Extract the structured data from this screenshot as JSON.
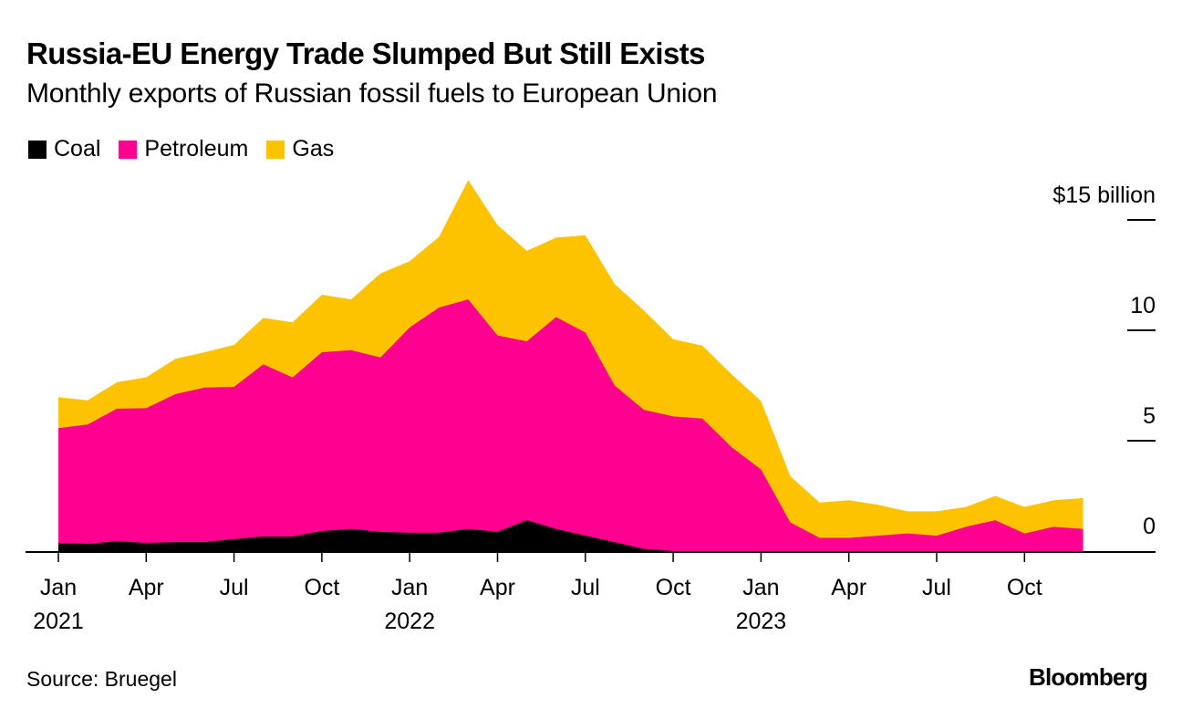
{
  "header": {
    "title": "Russia-EU Energy Trade Slumped But Still Exists",
    "subtitle": "Monthly exports of Russian fossil fuels to European Union"
  },
  "legend": [
    {
      "label": "Coal",
      "color": "#000000"
    },
    {
      "label": "Petroleum",
      "color": "#ff0090"
    },
    {
      "label": "Gas",
      "color": "#fdc300"
    }
  ],
  "footer": {
    "source": "Source: Bruegel",
    "brand": "Bloomberg"
  },
  "chart_data": {
    "type": "area",
    "stacked": true,
    "title": "Russia-EU Energy Trade Slumped But Still Exists",
    "subtitle": "Monthly exports of Russian fossil fuels to European Union",
    "xlabel": "",
    "ylabel": "$ billion",
    "ylim": [
      0,
      15
    ],
    "y_ticks": [
      {
        "value": 0,
        "label": "0"
      },
      {
        "value": 5,
        "label": "5"
      },
      {
        "value": 10,
        "label": "10"
      },
      {
        "value": 15,
        "label": "$15 billion"
      }
    ],
    "x_ticks": [
      {
        "month": 0,
        "label": "Jan",
        "year": "2021"
      },
      {
        "month": 3,
        "label": "Apr",
        "year": ""
      },
      {
        "month": 6,
        "label": "Jul",
        "year": ""
      },
      {
        "month": 9,
        "label": "Oct",
        "year": ""
      },
      {
        "month": 12,
        "label": "Jan",
        "year": "2022"
      },
      {
        "month": 15,
        "label": "Apr",
        "year": ""
      },
      {
        "month": 18,
        "label": "Jul",
        "year": ""
      },
      {
        "month": 21,
        "label": "Oct",
        "year": ""
      },
      {
        "month": 24,
        "label": "Jan",
        "year": "2023"
      },
      {
        "month": 27,
        "label": "Apr",
        "year": ""
      },
      {
        "month": 30,
        "label": "Jul",
        "year": ""
      },
      {
        "month": 33,
        "label": "Oct",
        "year": ""
      }
    ],
    "x": [
      "2021-01",
      "2021-02",
      "2021-03",
      "2021-04",
      "2021-05",
      "2021-06",
      "2021-07",
      "2021-08",
      "2021-09",
      "2021-10",
      "2021-11",
      "2021-12",
      "2022-01",
      "2022-02",
      "2022-03",
      "2022-04",
      "2022-05",
      "2022-06",
      "2022-07",
      "2022-08",
      "2022-09",
      "2022-10",
      "2022-11",
      "2022-12",
      "2023-01",
      "2023-02",
      "2023-03",
      "2023-04",
      "2023-05",
      "2023-06",
      "2023-07",
      "2023-08",
      "2023-09",
      "2023-10",
      "2023-11",
      "2023-12"
    ],
    "series": [
      {
        "name": "Coal",
        "color": "#000000",
        "values": [
          0.37,
          0.33,
          0.45,
          0.37,
          0.41,
          0.41,
          0.54,
          0.66,
          0.66,
          0.91,
          1.0,
          0.87,
          0.83,
          0.83,
          1.0,
          0.87,
          1.4,
          1.0,
          0.7,
          0.4,
          0.1,
          0,
          0,
          0,
          0,
          0,
          0,
          0,
          0,
          0,
          0,
          0,
          0,
          0,
          0,
          0
        ]
      },
      {
        "name": "Petroleum",
        "color": "#ff0090",
        "values": [
          5.2,
          5.4,
          6.0,
          6.1,
          6.7,
          7.0,
          6.9,
          7.8,
          7.2,
          8.1,
          8.1,
          7.9,
          9.3,
          10.2,
          10.4,
          8.9,
          8.1,
          9.6,
          9.2,
          7.1,
          6.3,
          6.1,
          6.0,
          4.7,
          3.7,
          1.3,
          0.6,
          0.6,
          0.7,
          0.8,
          0.7,
          1.1,
          1.4,
          0.8,
          1.1,
          1.0
        ]
      },
      {
        "name": "Gas",
        "color": "#fdc300",
        "values": [
          1.4,
          1.1,
          1.2,
          1.4,
          1.6,
          1.6,
          1.9,
          2.1,
          2.5,
          2.6,
          2.3,
          3.8,
          3.0,
          3.2,
          5.4,
          5.0,
          4.1,
          3.6,
          4.4,
          4.6,
          4.5,
          3.5,
          3.3,
          3.3,
          3.1,
          2.1,
          1.6,
          1.7,
          1.4,
          1.0,
          1.1,
          0.9,
          1.1,
          1.2,
          1.2,
          1.4
        ]
      }
    ],
    "grid": false,
    "legend_position": "top-left"
  }
}
